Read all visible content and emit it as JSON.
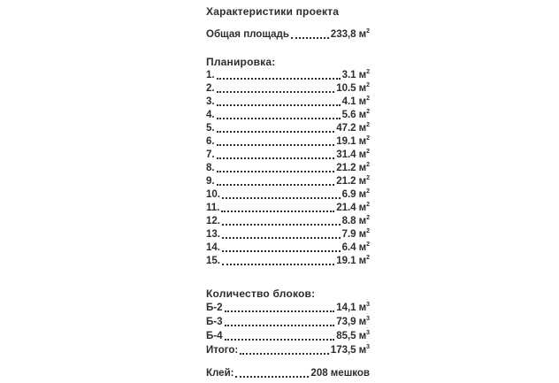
{
  "title": "Характеристики проекта",
  "total_area": {
    "label": "Общая площадь",
    "value": "233,8",
    "unit": "м",
    "sup": "2"
  },
  "layout_section": {
    "heading": "Планировка:",
    "unit": "м",
    "sup": "2",
    "items": [
      {
        "num": "1.",
        "value": "3.1"
      },
      {
        "num": "2.",
        "value": "10.5"
      },
      {
        "num": "3.",
        "value": "4.1"
      },
      {
        "num": "4.",
        "value": "5.6"
      },
      {
        "num": "5.",
        "value": "47.2"
      },
      {
        "num": "6.",
        "value": "19.1"
      },
      {
        "num": "7.",
        "value": "31.4"
      },
      {
        "num": "8.",
        "value": "21.2"
      },
      {
        "num": "9.",
        "value": "21.2"
      },
      {
        "num": "10.",
        "value": "6.9"
      },
      {
        "num": "11.",
        "value": "21.4"
      },
      {
        "num": "12.",
        "value": "8.8"
      },
      {
        "num": "13.",
        "value": "7.9"
      },
      {
        "num": "14.",
        "value": "6.4"
      },
      {
        "num": "15.",
        "value": "19.1"
      }
    ]
  },
  "blocks_section": {
    "heading": "Количество блоков:",
    "unit": "м",
    "sup": "3",
    "items": [
      {
        "label": "Б-2",
        "value": "14,1"
      },
      {
        "label": "Б-3",
        "value": "73,9"
      },
      {
        "label": "Б-4",
        "value": "85,5"
      },
      {
        "label": "Итого:",
        "value": "173,5"
      }
    ]
  },
  "glue": {
    "label": "Клей:",
    "value": "208 мешков"
  }
}
